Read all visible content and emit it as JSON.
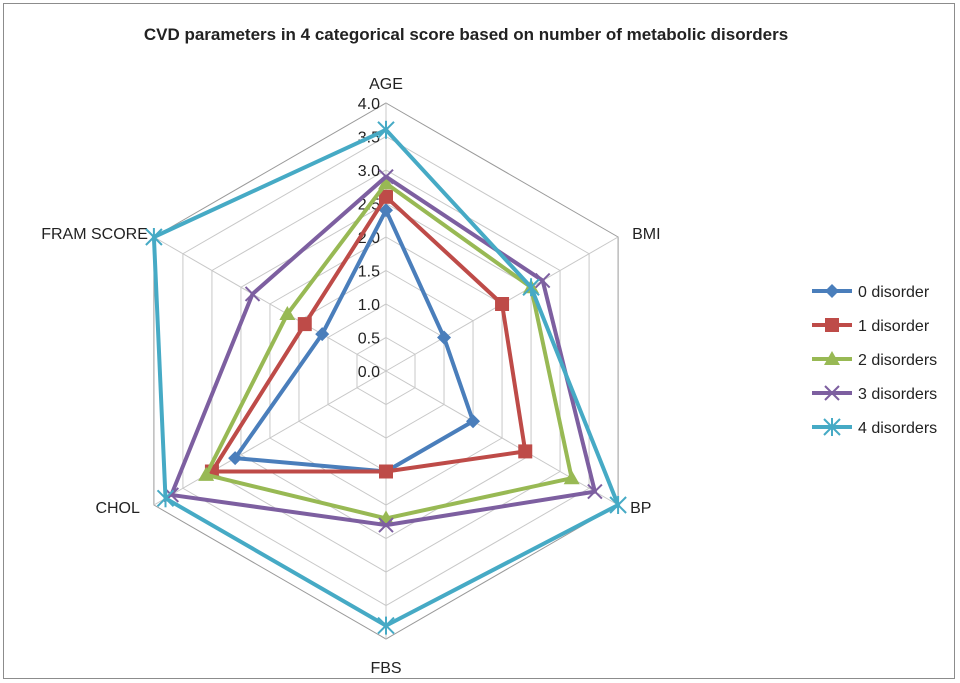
{
  "chart_data": {
    "type": "radar",
    "title": "CVD parameters in 4 categorical score based on number of metabolic disorders",
    "axes": [
      "AGE",
      "BMI",
      "BP",
      "FBS",
      "CHOL",
      "FRAM SCORE"
    ],
    "rlim": [
      0,
      4
    ],
    "ticks": [
      "0.0",
      "0.5",
      "1.0",
      "1.5",
      "2.0",
      "2.5",
      "3.0",
      "3.5",
      "4.0"
    ],
    "grid": true,
    "legend_position": "right",
    "series": [
      {
        "name": "0 disorder",
        "color": "#4a7ebb",
        "marker": "diamond",
        "values": [
          2.4,
          1.0,
          1.5,
          1.5,
          2.6,
          1.1
        ]
      },
      {
        "name": "1 disorder",
        "color": "#be4b48",
        "marker": "square",
        "values": [
          2.6,
          2.0,
          2.4,
          1.5,
          3.0,
          1.4
        ]
      },
      {
        "name": "2 disorders",
        "color": "#98b954",
        "marker": "triangle",
        "values": [
          2.8,
          2.5,
          3.2,
          2.2,
          3.1,
          1.7
        ]
      },
      {
        "name": "3 disorders",
        "color": "#7d5fa0",
        "marker": "x",
        "values": [
          2.9,
          2.7,
          3.6,
          2.3,
          3.7,
          2.3
        ]
      },
      {
        "name": "4 disorders",
        "color": "#46aac5",
        "marker": "star",
        "values": [
          3.6,
          2.5,
          4.0,
          3.8,
          3.8,
          4.0
        ]
      }
    ]
  }
}
